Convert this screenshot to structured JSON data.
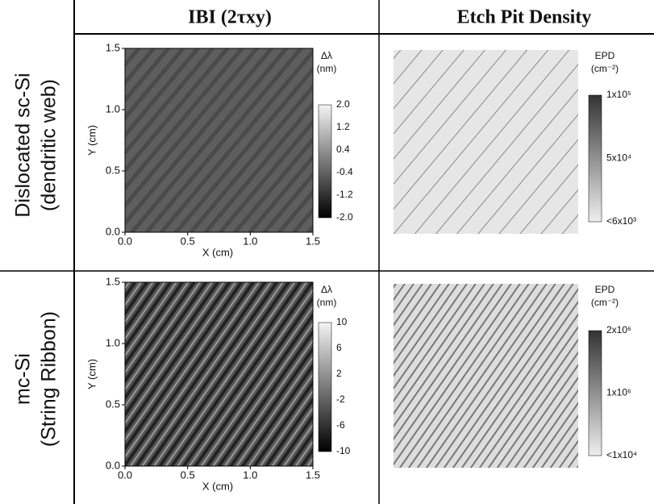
{
  "header": {
    "col1": "IBI (2τxy)",
    "col2": "Etch Pit Density"
  },
  "rows": [
    {
      "label": [
        "Dislocated sc-Si",
        "(dendritic web)"
      ],
      "ibi": {
        "x_axis_label": "X (cm)",
        "y_axis_label": "Y (cm)",
        "x_ticks": [
          "0.0",
          "0.5",
          "1.0",
          "1.5"
        ],
        "y_ticks": [
          "0.0",
          "0.5",
          "1.0",
          "1.5"
        ],
        "colorbar": {
          "title": [
            "Δλ",
            "(nm)"
          ],
          "ticks": [
            "2.0",
            "1.2",
            "0.4",
            "-0.4",
            "-1.2",
            "-2.0"
          ]
        }
      },
      "epd": {
        "colorbar": {
          "title": [
            "EPD",
            "(cm⁻²)"
          ],
          "ticks": [
            "1x10⁵",
            "5x10⁴",
            "<6x10³"
          ]
        }
      }
    },
    {
      "label": [
        "mc-Si",
        "(String Ribbon)"
      ],
      "ibi": {
        "x_axis_label": "X (cm)",
        "y_axis_label": "Y (cm)",
        "x_ticks": [
          "0.0",
          "0.5",
          "1.0",
          "1.5"
        ],
        "y_ticks": [
          "0.0",
          "0.5",
          "1.0",
          "1.5"
        ],
        "colorbar": {
          "title": [
            "Δλ",
            "(nm)"
          ],
          "ticks": [
            "10",
            "6",
            "2",
            "-2",
            "-6",
            "-10"
          ]
        }
      },
      "epd": {
        "colorbar": {
          "title": [
            "EPD",
            "(cm⁻²)"
          ],
          "ticks": [
            "2x10⁶",
            "1x10⁶",
            "<1x10⁴"
          ]
        }
      }
    }
  ]
}
